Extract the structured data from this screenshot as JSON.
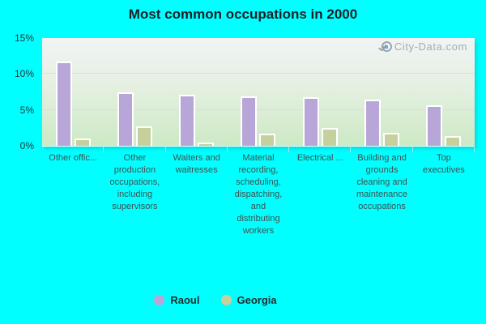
{
  "title": "Most common occupations in 2000",
  "watermark": {
    "text": "City-Data.com"
  },
  "colors": {
    "background": "#00ffff",
    "raoul_bar": "#b9a6d9",
    "georgia_bar": "#c6d09d",
    "bar_border": "#ffffff",
    "gridline": "#e2d3e4",
    "title_text": "#1b1f28",
    "axis_text": "#25383a",
    "category_text": "#41504f",
    "watermark_text": "#a2adb5"
  },
  "y_axis": {
    "tick_labels": [
      "0%",
      "5%",
      "10%",
      "15%"
    ],
    "tick_values": [
      0,
      5,
      10,
      15
    ]
  },
  "legend": {
    "items": [
      {
        "label": "Raoul",
        "color": "#b9a6d9"
      },
      {
        "label": "Georgia",
        "color": "#c6d09d"
      }
    ]
  },
  "chart_data": {
    "type": "bar",
    "title": "Most common occupations in 2000",
    "categories": [
      "Other offic...",
      "Other production occupations, including supervisors",
      "Waiters and waitresses",
      "Material recording, scheduling, dispatching, and distributing workers",
      "Electrical ...",
      "Building and grounds cleaning and maintenance occupations",
      "Top executives"
    ],
    "series": [
      {
        "name": "Raoul",
        "color": "#b9a6d9",
        "values": [
          11.7,
          7.4,
          7.1,
          6.9,
          6.8,
          6.4,
          5.6
        ]
      },
      {
        "name": "Georgia",
        "color": "#c6d09d",
        "values": [
          1.0,
          2.7,
          0.4,
          1.7,
          2.5,
          1.8,
          1.4
        ]
      }
    ],
    "xlabel": "",
    "ylabel": "",
    "ylim": [
      0,
      15
    ],
    "yticks_percent": [
      "0%",
      "5%",
      "10%",
      "15%"
    ],
    "gridlines_at": [
      5,
      10
    ],
    "grid": "horizontal",
    "legend_position": "bottom-center",
    "plot_background": "green-white vertical gradient",
    "bar_outline": "white"
  }
}
